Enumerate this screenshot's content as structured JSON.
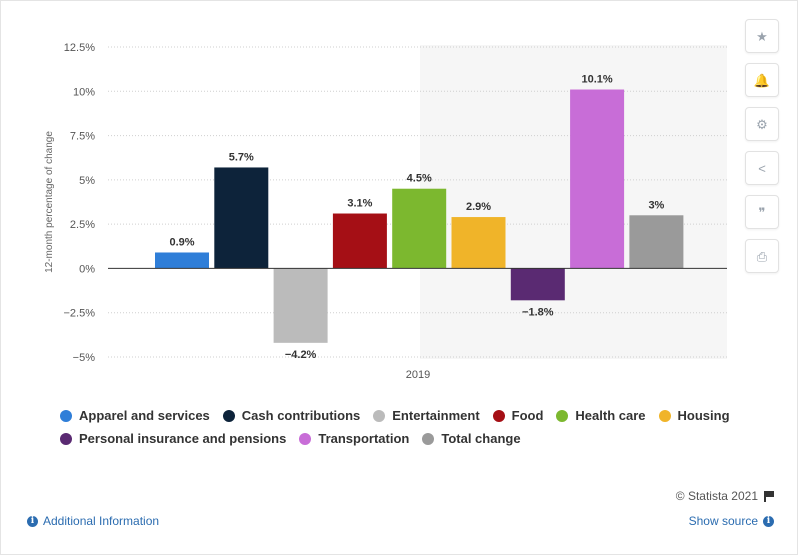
{
  "chart_data": {
    "type": "bar",
    "title": "",
    "xlabel": "",
    "ylabel": "12-month percentage of change",
    "ylim": [
      -5,
      12.5
    ],
    "yticks": [
      -5,
      -2.5,
      0,
      2.5,
      5,
      7.5,
      10,
      12.5
    ],
    "ytick_labels": [
      "−5%",
      "−2.5%",
      "0%",
      "2.5%",
      "5%",
      "7.5%",
      "10%",
      "12.5%"
    ],
    "categories": [
      "2019"
    ],
    "grid": true,
    "legend_position": "bottom",
    "series": [
      {
        "name": "Apparel and services",
        "values": [
          0.9
        ],
        "label": "0.9%",
        "color": "#2f7ed8"
      },
      {
        "name": "Cash contributions",
        "values": [
          5.7
        ],
        "label": "5.7%",
        "color": "#0d233a"
      },
      {
        "name": "Entertainment",
        "values": [
          -4.2
        ],
        "label": "−4.2%",
        "color": "#bbbbbb"
      },
      {
        "name": "Food",
        "values": [
          3.1
        ],
        "label": "3.1%",
        "color": "#a50f15"
      },
      {
        "name": "Health care",
        "values": [
          4.5
        ],
        "label": "4.5%",
        "color": "#7cb82f"
      },
      {
        "name": "Housing",
        "values": [
          2.9
        ],
        "label": "2.9%",
        "color": "#f0b429"
      },
      {
        "name": "Personal insurance and pensions",
        "values": [
          -1.8
        ],
        "label": "−1.8%",
        "color": "#5a2a72"
      },
      {
        "name": "Transportation",
        "values": [
          10.1
        ],
        "label": "10.1%",
        "color": "#c86dd7"
      },
      {
        "name": "Total change",
        "values": [
          3
        ],
        "label": "3%",
        "color": "#9a9a9a"
      }
    ]
  },
  "toolbar": {
    "buttons": [
      {
        "icon": "star-icon",
        "glyph": "★"
      },
      {
        "icon": "bell-icon",
        "glyph": "🔔"
      },
      {
        "icon": "gear-icon",
        "glyph": "⚙"
      },
      {
        "icon": "share-icon",
        "glyph": "<"
      },
      {
        "icon": "quote-icon",
        "glyph": "❞"
      },
      {
        "icon": "print-icon",
        "glyph": "⎙"
      }
    ]
  },
  "footer": {
    "credit": "© Statista 2021",
    "additional_info": "Additional Information",
    "show_source": "Show source"
  }
}
